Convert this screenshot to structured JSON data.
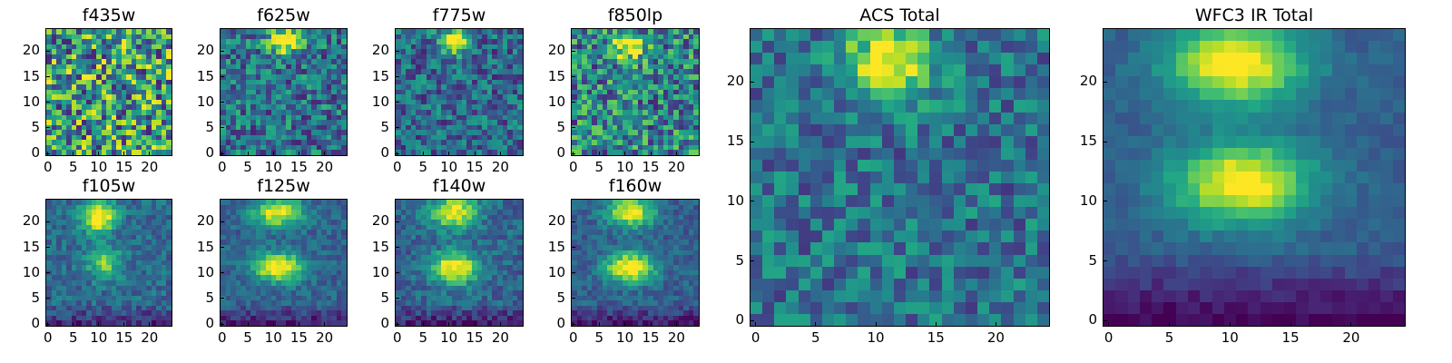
{
  "colormap": "viridis",
  "chart_data": [
    {
      "type": "heatmap",
      "title": "f435w",
      "x_ticks": [
        0,
        5,
        10,
        15,
        20
      ],
      "y_ticks": [
        0,
        5,
        10,
        15,
        20
      ],
      "xlim": [
        0,
        25
      ],
      "ylim": [
        0,
        25
      ],
      "grid": false,
      "description_of_values": "normalized noisy flux, no clear source",
      "source_centers": []
    },
    {
      "type": "heatmap",
      "title": "f625w",
      "x_ticks": [
        0,
        5,
        10,
        15,
        20
      ],
      "y_ticks": [
        0,
        5,
        10,
        15,
        20
      ],
      "xlim": [
        0,
        25
      ],
      "ylim": [
        0,
        25
      ],
      "grid": false,
      "source_centers": [
        {
          "x": 12,
          "y": 22,
          "peak": 1.0
        }
      ]
    },
    {
      "type": "heatmap",
      "title": "f775w",
      "x_ticks": [
        0,
        5,
        10,
        15,
        20
      ],
      "y_ticks": [
        0,
        5,
        10,
        15,
        20
      ],
      "xlim": [
        0,
        25
      ],
      "ylim": [
        0,
        25
      ],
      "grid": false,
      "source_centers": [
        {
          "x": 11,
          "y": 22,
          "peak": 1.0
        }
      ]
    },
    {
      "type": "heatmap",
      "title": "f850lp",
      "x_ticks": [
        0,
        5,
        10,
        15,
        20
      ],
      "y_ticks": [
        0,
        5,
        10,
        15,
        20
      ],
      "xlim": [
        0,
        25
      ],
      "ylim": [
        0,
        25
      ],
      "grid": false,
      "source_centers": [
        {
          "x": 11,
          "y": 21,
          "peak": 0.9
        }
      ]
    },
    {
      "type": "heatmap",
      "title": "f105w",
      "x_ticks": [
        0,
        5,
        10,
        15,
        20
      ],
      "y_ticks": [
        0,
        5,
        10,
        15,
        20
      ],
      "xlim": [
        0,
        25
      ],
      "ylim": [
        0,
        25
      ],
      "grid": false,
      "source_centers": [
        {
          "x": 10,
          "y": 21,
          "peak": 1.0
        },
        {
          "x": 11,
          "y": 12,
          "peak": 0.6
        }
      ]
    },
    {
      "type": "heatmap",
      "title": "f125w",
      "x_ticks": [
        0,
        5,
        10,
        15,
        20
      ],
      "y_ticks": [
        0,
        5,
        10,
        15,
        20
      ],
      "xlim": [
        0,
        25
      ],
      "ylim": [
        0,
        25
      ],
      "grid": false,
      "source_centers": [
        {
          "x": 11,
          "y": 22,
          "peak": 0.9
        },
        {
          "x": 11,
          "y": 11,
          "peak": 1.0
        }
      ]
    },
    {
      "type": "heatmap",
      "title": "f140w",
      "x_ticks": [
        0,
        5,
        10,
        15,
        20
      ],
      "y_ticks": [
        0,
        5,
        10,
        15,
        20
      ],
      "xlim": [
        0,
        25
      ],
      "ylim": [
        0,
        25
      ],
      "grid": false,
      "source_centers": [
        {
          "x": 11,
          "y": 22,
          "peak": 0.95
        },
        {
          "x": 11,
          "y": 11,
          "peak": 1.0
        }
      ]
    },
    {
      "type": "heatmap",
      "title": "f160w",
      "x_ticks": [
        0,
        5,
        10,
        15,
        20
      ],
      "y_ticks": [
        0,
        5,
        10,
        15,
        20
      ],
      "xlim": [
        0,
        25
      ],
      "ylim": [
        0,
        25
      ],
      "grid": false,
      "source_centers": [
        {
          "x": 11,
          "y": 22,
          "peak": 0.9
        },
        {
          "x": 11,
          "y": 11,
          "peak": 1.0
        }
      ]
    },
    {
      "type": "heatmap",
      "title": "ACS Total",
      "x_ticks": [
        0,
        5,
        10,
        15,
        20
      ],
      "y_ticks": [
        0,
        5,
        10,
        15,
        20
      ],
      "xlim": [
        0,
        25
      ],
      "ylim": [
        0,
        25
      ],
      "grid": false,
      "source_centers": [
        {
          "x": 11,
          "y": 21.5,
          "peak": 1.0
        }
      ]
    },
    {
      "type": "heatmap",
      "title": "WFC3 IR Total",
      "x_ticks": [
        0,
        5,
        10,
        15,
        20
      ],
      "y_ticks": [
        0,
        5,
        10,
        15,
        20
      ],
      "xlim": [
        0,
        25
      ],
      "ylim": [
        0,
        25
      ],
      "grid": false,
      "source_centers": [
        {
          "x": 10.5,
          "y": 21.5,
          "peak": 1.0
        },
        {
          "x": 11,
          "y": 11.5,
          "peak": 1.0
        }
      ]
    }
  ]
}
